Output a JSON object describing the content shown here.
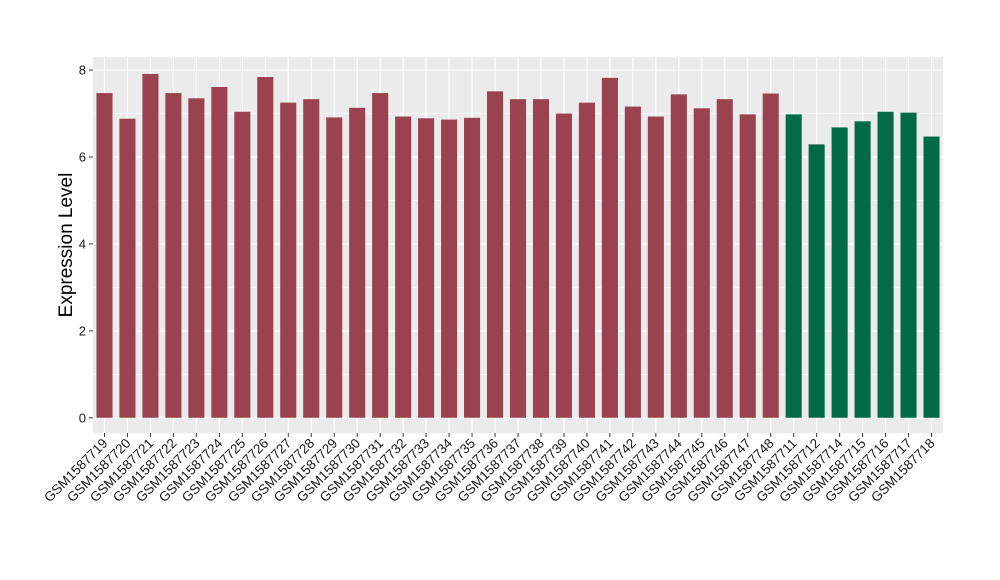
{
  "chart_data": {
    "type": "bar",
    "ylabel": "Expression Level",
    "xlabel": "",
    "ylim": [
      -0.35,
      8.3
    ],
    "yticks": [
      0,
      2,
      4,
      6,
      8
    ],
    "grid": true,
    "categories": [
      "GSM1587719",
      "GSM1587720",
      "GSM1587721",
      "GSM1587722",
      "GSM1587723",
      "GSM1587724",
      "GSM1587725",
      "GSM1587726",
      "GSM1587727",
      "GSM1587728",
      "GSM1587729",
      "GSM1587730",
      "GSM1587731",
      "GSM1587732",
      "GSM1587733",
      "GSM1587734",
      "GSM1587735",
      "GSM1587736",
      "GSM1587737",
      "GSM1587738",
      "GSM1587739",
      "GSM1587740",
      "GSM1587741",
      "GSM1587742",
      "GSM1587743",
      "GSM1587744",
      "GSM1587745",
      "GSM1587746",
      "GSM1587747",
      "GSM1587748",
      "GSM1587711",
      "GSM1587712",
      "GSM1587714",
      "GSM1587715",
      "GSM1587716",
      "GSM1587717",
      "GSM1587718"
    ],
    "values": [
      7.47,
      6.88,
      7.91,
      7.47,
      7.35,
      7.61,
      7.04,
      7.84,
      7.25,
      7.33,
      6.91,
      7.13,
      7.47,
      6.93,
      6.89,
      6.86,
      6.9,
      7.51,
      7.33,
      7.33,
      7.0,
      7.25,
      7.82,
      7.16,
      6.93,
      7.44,
      7.12,
      7.33,
      6.98,
      7.46,
      6.98,
      6.29,
      6.68,
      6.82,
      7.04,
      7.02,
      6.47
    ],
    "groups": [
      0,
      0,
      0,
      0,
      0,
      0,
      0,
      0,
      0,
      0,
      0,
      0,
      0,
      0,
      0,
      0,
      0,
      0,
      0,
      0,
      0,
      0,
      0,
      0,
      0,
      0,
      0,
      0,
      0,
      0,
      1,
      1,
      1,
      1,
      1,
      1,
      1
    ],
    "colors": [
      "#9b4251",
      "#026a44"
    ],
    "panel_color": "#ebebeb",
    "grid_color": "#ffffff"
  }
}
